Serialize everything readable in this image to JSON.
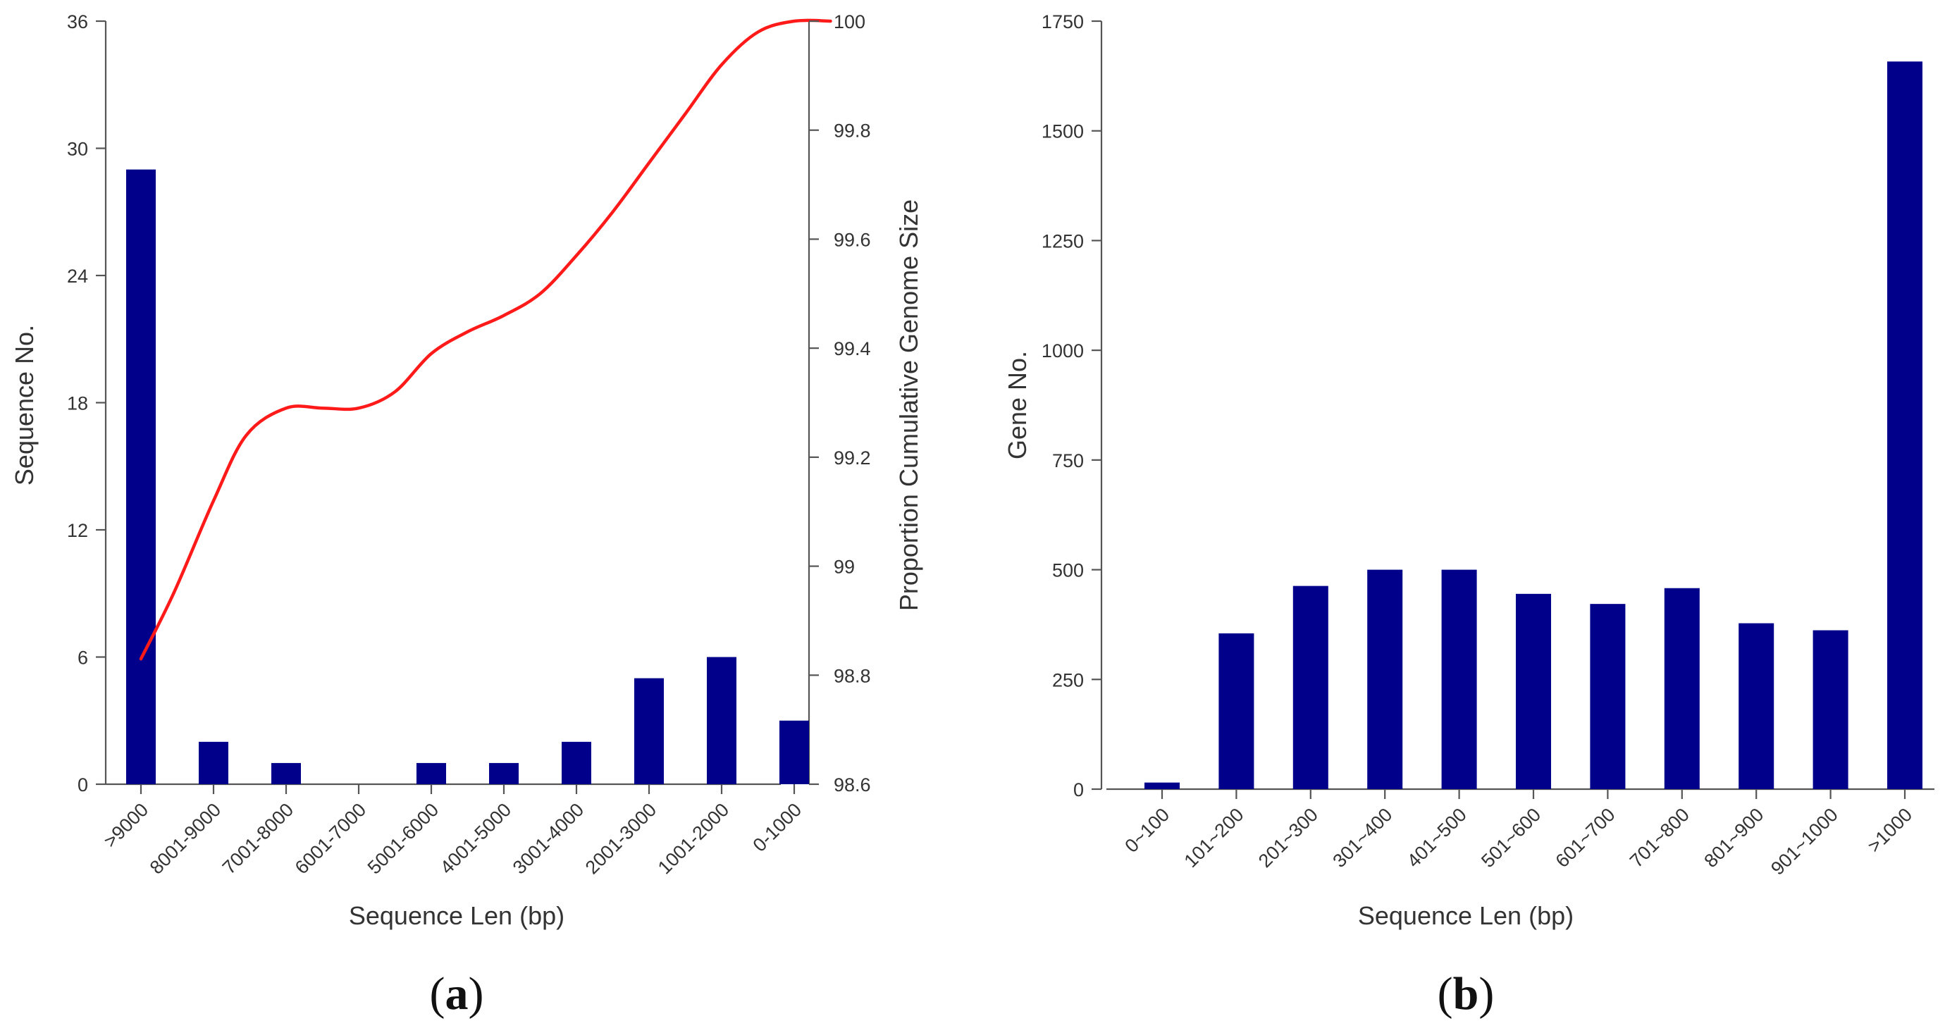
{
  "colors": {
    "bar": "#00008b",
    "curve": "#ff1a1a",
    "axis": "#555555",
    "text": "#333333"
  },
  "chart_data": [
    {
      "type": "bar",
      "panel": "(a)",
      "panel_letter": "a",
      "categories": [
        ">9000",
        "8001-9000",
        "7001-8000",
        "6001-7000",
        "5001-6000",
        "4001-5000",
        "3001-4000",
        "2001-3000",
        "1001-2000",
        "0-1000"
      ],
      "values": [
        29,
        2,
        1,
        0,
        1,
        1,
        2,
        5,
        6,
        3
      ],
      "xlabel": "Sequence Len (bp)",
      "ylabel": "Sequence No.",
      "ylim": [
        0,
        36
      ],
      "yticks": [
        0,
        6,
        12,
        18,
        24,
        30,
        36
      ],
      "grid": false,
      "secondary_axis": {
        "type": "line",
        "ylabel": "Proportion Cumulative Genome Size",
        "ylim": [
          98.6,
          100
        ],
        "yticks": [
          "98.6",
          "98.8",
          "99",
          "99.2",
          "99.4",
          "99.6",
          "99.8",
          "100"
        ],
        "series": [
          {
            "name": "Proportion Cumulative Genome Size",
            "x_positions": [
              0,
              0.45,
              1,
              1.45,
              2,
              2.5,
              3,
              3.5,
              4,
              4.5,
              5,
              5.5,
              6,
              6.5,
              7,
              7.5,
              8,
              8.5,
              9,
              9.5
            ],
            "values": [
              98.83,
              98.95,
              99.12,
              99.24,
              99.29,
              99.29,
              99.29,
              99.32,
              99.39,
              99.43,
              99.46,
              99.5,
              99.57,
              99.65,
              99.74,
              99.83,
              99.92,
              99.98,
              100.0,
              100.0
            ]
          }
        ]
      }
    },
    {
      "type": "bar",
      "panel": "(b)",
      "panel_letter": "b",
      "categories": [
        "0~100",
        "101~200",
        "201~300",
        "301~400",
        "401~500",
        "501~600",
        "601~700",
        "701~800",
        "801~900",
        "901~1000",
        ">1000"
      ],
      "values": [
        15,
        355,
        463,
        500,
        500,
        445,
        422,
        458,
        378,
        362,
        1658
      ],
      "xlabel": "Sequence Len (bp)",
      "ylabel": "Gene No.",
      "ylim": [
        0,
        1750
      ],
      "yticks": [
        0,
        250,
        500,
        750,
        1000,
        1250,
        1500,
        1750
      ],
      "grid": false
    }
  ]
}
